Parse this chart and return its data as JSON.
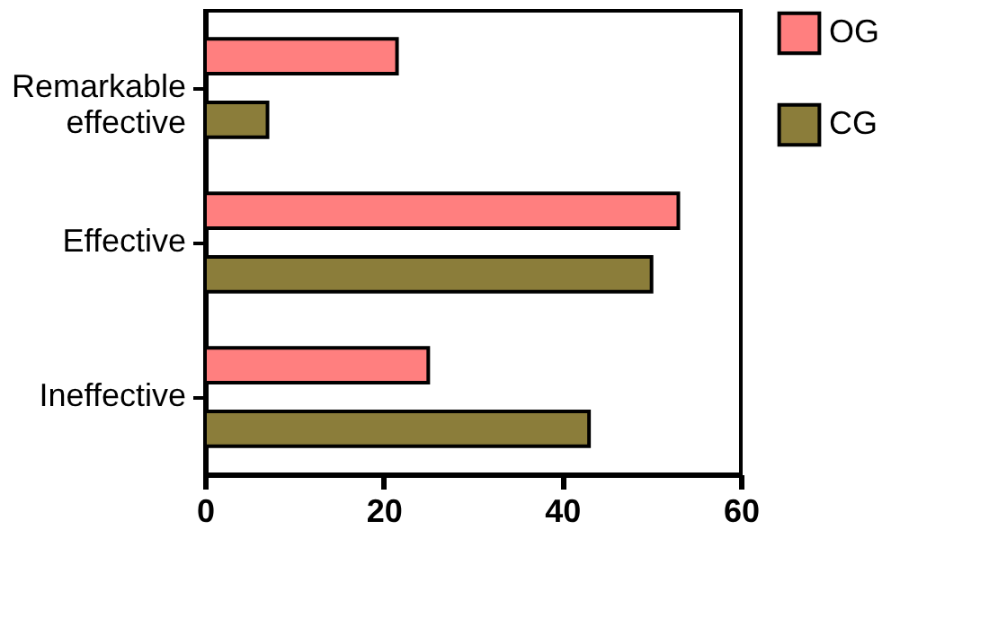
{
  "chart_data": {
    "type": "bar",
    "orientation": "horizontal",
    "categories": [
      "Remarkable effective",
      "Effective",
      "Ineffective"
    ],
    "series": [
      {
        "name": "OG",
        "color": "#ff7f7f",
        "values": [
          21.5,
          53,
          25
        ]
      },
      {
        "name": "CG",
        "color": "#8b7d3a",
        "values": [
          7,
          50,
          43
        ]
      }
    ],
    "xlim": [
      0,
      60
    ],
    "xticks": [
      0,
      20,
      40,
      60
    ],
    "grid": false,
    "legend": "top right"
  }
}
